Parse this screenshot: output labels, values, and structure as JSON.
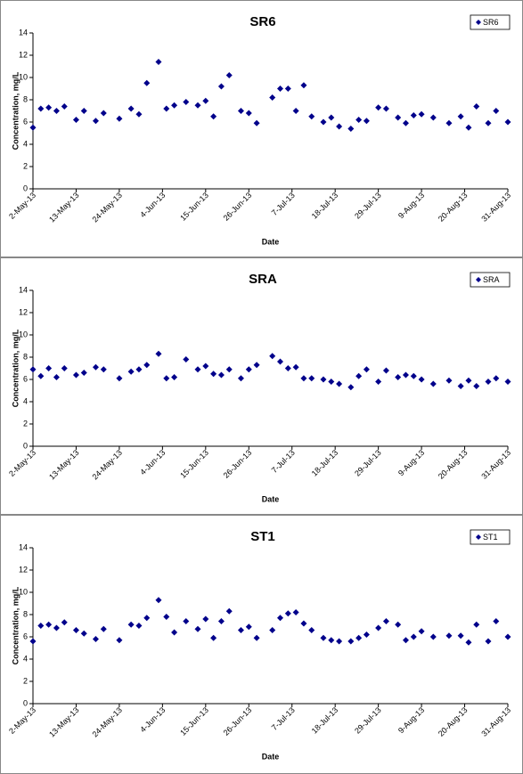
{
  "chart_data": [
    {
      "type": "scatter",
      "title": "SR6",
      "x_label": "Date",
      "y_label": "Concentration, mg/L",
      "legend": "upper right",
      "x": [
        "2013-05-02",
        "2013-05-04",
        "2013-05-06",
        "2013-05-08",
        "2013-05-10",
        "2013-05-13",
        "2013-05-15",
        "2013-05-18",
        "2013-05-20",
        "2013-05-24",
        "2013-05-27",
        "2013-05-29",
        "2013-05-31",
        "2013-06-03",
        "2013-06-05",
        "2013-06-07",
        "2013-06-10",
        "2013-06-13",
        "2013-06-15",
        "2013-06-17",
        "2013-06-19",
        "2013-06-21",
        "2013-06-24",
        "2013-06-26",
        "2013-06-28",
        "2013-07-02",
        "2013-07-04",
        "2013-07-06",
        "2013-07-08",
        "2013-07-10",
        "2013-07-12",
        "2013-07-15",
        "2013-07-17",
        "2013-07-19",
        "2013-07-22",
        "2013-07-24",
        "2013-07-26",
        "2013-07-29",
        "2013-07-31",
        "2013-08-03",
        "2013-08-05",
        "2013-08-07",
        "2013-08-09",
        "2013-08-12",
        "2013-08-16",
        "2013-08-19",
        "2013-08-21",
        "2013-08-23",
        "2013-08-26",
        "2013-08-28",
        "2013-08-31"
      ],
      "series": [
        {
          "name": "SR6",
          "color": "#00008b",
          "values": [
            5.5,
            7.2,
            7.3,
            7.0,
            7.4,
            6.2,
            7.0,
            6.1,
            6.8,
            6.3,
            7.2,
            6.7,
            9.5,
            11.4,
            7.2,
            7.5,
            7.8,
            7.5,
            7.9,
            6.5,
            9.2,
            10.2,
            7.0,
            6.8,
            5.9,
            8.2,
            9.0,
            9.0,
            7.0,
            9.3,
            6.5,
            6.0,
            6.4,
            5.6,
            5.4,
            6.2,
            6.1,
            7.3,
            7.2,
            6.4,
            5.9,
            6.6,
            6.7,
            6.4,
            5.9,
            6.5,
            5.5,
            7.4,
            5.9,
            7.0,
            6.0
          ]
        }
      ],
      "xlim": [
        "2013-05-02",
        "2013-08-31"
      ],
      "xticks": [
        {
          "value": "2013-05-02",
          "label": "2-May-13"
        },
        {
          "value": "2013-05-13",
          "label": "13-May-13"
        },
        {
          "value": "2013-05-24",
          "label": "24-May-13"
        },
        {
          "value": "2013-06-04",
          "label": "4-Jun-13"
        },
        {
          "value": "2013-06-15",
          "label": "15-Jun-13"
        },
        {
          "value": "2013-06-26",
          "label": "26-Jun-13"
        },
        {
          "value": "2013-07-07",
          "label": "7-Jul-13"
        },
        {
          "value": "2013-07-18",
          "label": "18-Jul-13"
        },
        {
          "value": "2013-07-29",
          "label": "29-Jul-13"
        },
        {
          "value": "2013-08-09",
          "label": "9-Aug-13"
        },
        {
          "value": "2013-08-20",
          "label": "20-Aug-13"
        },
        {
          "value": "2013-08-31",
          "label": "31-Aug-13"
        }
      ],
      "ylim": [
        0,
        14
      ],
      "yticks": [
        0,
        2,
        4,
        6,
        8,
        10,
        12,
        14
      ]
    },
    {
      "type": "scatter",
      "title": "SRA",
      "x_label": "Date",
      "y_label": "Concentration, mg/L",
      "legend": "upper right",
      "x": [
        "2013-05-02",
        "2013-05-04",
        "2013-05-06",
        "2013-05-08",
        "2013-05-10",
        "2013-05-13",
        "2013-05-15",
        "2013-05-18",
        "2013-05-20",
        "2013-05-24",
        "2013-05-27",
        "2013-05-29",
        "2013-05-31",
        "2013-06-03",
        "2013-06-05",
        "2013-06-07",
        "2013-06-10",
        "2013-06-13",
        "2013-06-15",
        "2013-06-17",
        "2013-06-19",
        "2013-06-21",
        "2013-06-24",
        "2013-06-26",
        "2013-06-28",
        "2013-07-02",
        "2013-07-04",
        "2013-07-06",
        "2013-07-08",
        "2013-07-10",
        "2013-07-12",
        "2013-07-15",
        "2013-07-17",
        "2013-07-19",
        "2013-07-22",
        "2013-07-24",
        "2013-07-26",
        "2013-07-29",
        "2013-07-31",
        "2013-08-03",
        "2013-08-05",
        "2013-08-07",
        "2013-08-09",
        "2013-08-12",
        "2013-08-16",
        "2013-08-19",
        "2013-08-21",
        "2013-08-23",
        "2013-08-26",
        "2013-08-28",
        "2013-08-31"
      ],
      "series": [
        {
          "name": "SRA",
          "color": "#00008b",
          "values": [
            6.9,
            6.3,
            7.0,
            6.2,
            7.0,
            6.4,
            6.6,
            7.1,
            6.9,
            6.1,
            6.7,
            6.9,
            7.3,
            8.3,
            6.1,
            6.2,
            7.8,
            6.9,
            7.2,
            6.5,
            6.4,
            6.9,
            6.1,
            6.9,
            7.3,
            8.1,
            7.6,
            7.0,
            7.1,
            6.1,
            6.1,
            6.0,
            5.8,
            5.6,
            5.3,
            6.3,
            6.9,
            5.8,
            6.8,
            6.2,
            6.4,
            6.3,
            6.0,
            5.6,
            5.9,
            5.4,
            5.9,
            5.4,
            5.8,
            6.1,
            5.8
          ]
        }
      ],
      "xlim": [
        "2013-05-02",
        "2013-08-31"
      ],
      "xticks": [
        {
          "value": "2013-05-02",
          "label": "2-May-13"
        },
        {
          "value": "2013-05-13",
          "label": "13-May-13"
        },
        {
          "value": "2013-05-24",
          "label": "24-May-13"
        },
        {
          "value": "2013-06-04",
          "label": "4-Jun-13"
        },
        {
          "value": "2013-06-15",
          "label": "15-Jun-13"
        },
        {
          "value": "2013-06-26",
          "label": "26-Jun-13"
        },
        {
          "value": "2013-07-07",
          "label": "7-Jul-13"
        },
        {
          "value": "2013-07-18",
          "label": "18-Jul-13"
        },
        {
          "value": "2013-07-29",
          "label": "29-Jul-13"
        },
        {
          "value": "2013-08-09",
          "label": "9-Aug-13"
        },
        {
          "value": "2013-08-20",
          "label": "20-Aug-13"
        },
        {
          "value": "2013-08-31",
          "label": "31-Aug-13"
        }
      ],
      "ylim": [
        0,
        14
      ],
      "yticks": [
        0,
        2,
        4,
        6,
        8,
        10,
        12,
        14
      ]
    },
    {
      "type": "scatter",
      "title": "ST1",
      "x_label": "Date",
      "y_label": "Concentration, mg/L",
      "legend": "upper right",
      "x": [
        "2013-05-02",
        "2013-05-04",
        "2013-05-06",
        "2013-05-08",
        "2013-05-10",
        "2013-05-13",
        "2013-05-15",
        "2013-05-18",
        "2013-05-20",
        "2013-05-24",
        "2013-05-27",
        "2013-05-29",
        "2013-05-31",
        "2013-06-03",
        "2013-06-05",
        "2013-06-07",
        "2013-06-10",
        "2013-06-13",
        "2013-06-15",
        "2013-06-17",
        "2013-06-19",
        "2013-06-21",
        "2013-06-24",
        "2013-06-26",
        "2013-06-28",
        "2013-07-02",
        "2013-07-04",
        "2013-07-06",
        "2013-07-08",
        "2013-07-10",
        "2013-07-12",
        "2013-07-15",
        "2013-07-17",
        "2013-07-19",
        "2013-07-22",
        "2013-07-24",
        "2013-07-26",
        "2013-07-29",
        "2013-07-31",
        "2013-08-03",
        "2013-08-05",
        "2013-08-07",
        "2013-08-09",
        "2013-08-12",
        "2013-08-16",
        "2013-08-19",
        "2013-08-21",
        "2013-08-23",
        "2013-08-26",
        "2013-08-28",
        "2013-08-31"
      ],
      "series": [
        {
          "name": "ST1",
          "color": "#00008b",
          "values": [
            5.6,
            7.0,
            7.1,
            6.8,
            7.3,
            6.6,
            6.3,
            5.8,
            6.7,
            5.7,
            7.1,
            7.0,
            7.7,
            9.3,
            7.8,
            6.4,
            7.4,
            6.7,
            7.6,
            5.9,
            7.4,
            8.3,
            6.6,
            6.9,
            5.9,
            6.6,
            7.7,
            8.1,
            8.2,
            7.2,
            6.6,
            5.9,
            5.7,
            5.6,
            5.6,
            5.9,
            6.2,
            6.8,
            7.4,
            7.1,
            5.7,
            6.0,
            6.5,
            6.0,
            6.1,
            6.1,
            5.5,
            7.1,
            5.6,
            7.4,
            6.0
          ]
        }
      ],
      "xlim": [
        "2013-05-02",
        "2013-08-31"
      ],
      "xticks": [
        {
          "value": "2013-05-02",
          "label": "2-May-13"
        },
        {
          "value": "2013-05-13",
          "label": "13-May-13"
        },
        {
          "value": "2013-05-24",
          "label": "24-May-13"
        },
        {
          "value": "2013-06-04",
          "label": "4-Jun-13"
        },
        {
          "value": "2013-06-15",
          "label": "15-Jun-13"
        },
        {
          "value": "2013-06-26",
          "label": "26-Jun-13"
        },
        {
          "value": "2013-07-07",
          "label": "7-Jul-13"
        },
        {
          "value": "2013-07-18",
          "label": "18-Jul-13"
        },
        {
          "value": "2013-07-29",
          "label": "29-Jul-13"
        },
        {
          "value": "2013-08-09",
          "label": "9-Aug-13"
        },
        {
          "value": "2013-08-20",
          "label": "20-Aug-13"
        },
        {
          "value": "2013-08-31",
          "label": "31-Aug-13"
        }
      ],
      "ylim": [
        0,
        14
      ],
      "yticks": [
        0,
        2,
        4,
        6,
        8,
        10,
        12,
        14
      ]
    }
  ]
}
